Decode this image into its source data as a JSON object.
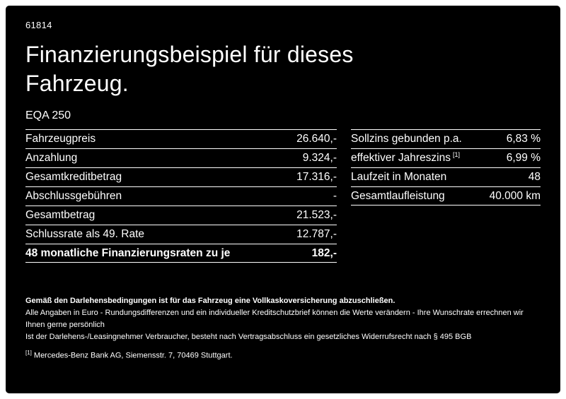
{
  "colors": {
    "background": "#000000",
    "text": "#ffffff",
    "frame": "#ffffff"
  },
  "header": {
    "reference_number": "61814",
    "title": "Finanzierungsbeispiel für dieses Fahrzeug.",
    "model": "EQA 250"
  },
  "financing_table": {
    "rows": [
      {
        "label": "Fahrzeugpreis",
        "value": "26.640,-"
      },
      {
        "label": "Anzahlung",
        "value": "9.324,-"
      },
      {
        "label": "Gesamtkreditbetrag",
        "value": "17.316,-"
      },
      {
        "label": "Abschlussgebühren",
        "value": "-"
      },
      {
        "label": "Gesamtbetrag",
        "value": "21.523,-"
      },
      {
        "label": "Schlussrate als 49. Rate",
        "value": "12.787,-"
      },
      {
        "label": "48 monatliche Finanzierungsraten zu je",
        "value": "182,-"
      }
    ]
  },
  "conditions_table": {
    "rows": [
      {
        "label": "Sollzins gebunden p.a.",
        "value": "6,83 %"
      },
      {
        "label": "effektiver Jahreszins",
        "footnote_marker": "[1]",
        "value": "6,99 %"
      },
      {
        "label": "Laufzeit in Monaten",
        "value": "48"
      },
      {
        "label": "Gesamtlaufleistung",
        "value": "40.000 km"
      }
    ]
  },
  "legal": {
    "insurance_note": "Gemäß den Darlehensbedingungen ist für das Fahrzeug eine Vollkaskoversicherung abzuschließen.",
    "euro_note": "Alle Angaben in Euro - Rundungsdifferenzen und ein individueller Kreditschutzbrief können die Werte verändern - Ihre Wunschrate errechnen wir Ihnen gerne persönlich",
    "withdrawal_note": "Ist der Darlehens-/Leasingnehmer Verbraucher, besteht nach Vertragsabschluss ein gesetzliches Widerrufsrecht nach § 495 BGB",
    "footnote_marker": "[1]",
    "footnote_text": "Mercedes-Benz Bank AG, Siemensstr. 7, 70469 Stuttgart."
  }
}
